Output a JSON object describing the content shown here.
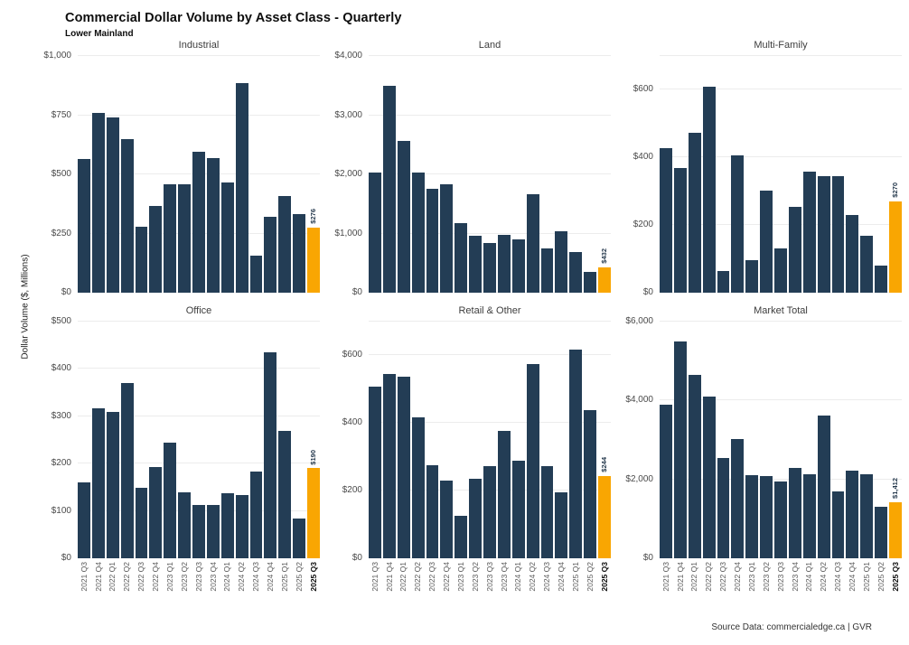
{
  "header": {
    "title": "Commercial Dollar Volume by Asset Class - Quarterly",
    "subtitle": "Lower Mainland"
  },
  "ylabel": "Dollar Volume ($, Millions)",
  "source": "Source Data: commercialedge.ca | GVR",
  "colors": {
    "bar": "#233d55",
    "highlight": "#f9a602",
    "gridline": "#ececec"
  },
  "categories": [
    "2021 Q3",
    "2021 Q4",
    "2022 Q1",
    "2022 Q2",
    "2022 Q3",
    "2022 Q4",
    "2023 Q1",
    "2023 Q2",
    "2023 Q3",
    "2023 Q4",
    "2024 Q1",
    "2024 Q2",
    "2024 Q3",
    "2024 Q4",
    "2025 Q1",
    "2025 Q2",
    "2025 Q3"
  ],
  "chart_data": [
    {
      "type": "bar",
      "title": "Industrial",
      "ylim": [
        0,
        1000
      ],
      "yticks": [
        {
          "value": 0,
          "label": "$0"
        },
        {
          "value": 250,
          "label": "$250"
        },
        {
          "value": 500,
          "label": "$500"
        },
        {
          "value": 750,
          "label": "$750"
        },
        {
          "value": 1000,
          "label": "$1,000"
        }
      ],
      "values": [
        565,
        760,
        740,
        650,
        280,
        368,
        458,
        458,
        595,
        570,
        465,
        885,
        155,
        320,
        408,
        333,
        276
      ],
      "highlight_label": "$276",
      "show_x_labels": false
    },
    {
      "type": "bar",
      "title": "Land",
      "ylim": [
        0,
        4000
      ],
      "yticks": [
        {
          "value": 0,
          "label": "$0"
        },
        {
          "value": 1000,
          "label": "$1,000"
        },
        {
          "value": 2000,
          "label": "$2,000"
        },
        {
          "value": 3000,
          "label": "$3,000"
        },
        {
          "value": 4000,
          "label": "$4,000"
        }
      ],
      "values": [
        2030,
        3500,
        2560,
        2030,
        1760,
        1830,
        1180,
        960,
        845,
        975,
        895,
        1660,
        755,
        1035,
        690,
        350,
        432
      ],
      "highlight_label": "$432",
      "show_x_labels": false
    },
    {
      "type": "bar",
      "title": "Multi-Family",
      "ylim": [
        0,
        700
      ],
      "yticks": [
        {
          "value": 0,
          "label": "$0"
        },
        {
          "value": 200,
          "label": "$200"
        },
        {
          "value": 400,
          "label": "$400"
        },
        {
          "value": 600,
          "label": "$600"
        },
        {
          "value": 700,
          "label": ""
        }
      ],
      "values": [
        428,
        368,
        472,
        608,
        63,
        405,
        95,
        302,
        131,
        254,
        358,
        345,
        345,
        231,
        168,
        80,
        270
      ],
      "highlight_label": "$270",
      "show_x_labels": false
    },
    {
      "type": "bar",
      "title": "Office",
      "ylim": [
        0,
        500
      ],
      "yticks": [
        {
          "value": 0,
          "label": "$0"
        },
        {
          "value": 100,
          "label": "$100"
        },
        {
          "value": 200,
          "label": "$200"
        },
        {
          "value": 300,
          "label": "$300"
        },
        {
          "value": 400,
          "label": "$400"
        },
        {
          "value": 500,
          "label": "$500"
        }
      ],
      "values": [
        160,
        316,
        309,
        370,
        148,
        192,
        244,
        139,
        112,
        112,
        137,
        133,
        183,
        436,
        269,
        84,
        190
      ],
      "highlight_label": "$190",
      "show_x_labels": true
    },
    {
      "type": "bar",
      "title": "Retail & Other",
      "ylim": [
        0,
        700
      ],
      "yticks": [
        {
          "value": 0,
          "label": "$0"
        },
        {
          "value": 200,
          "label": "$200"
        },
        {
          "value": 400,
          "label": "$400"
        },
        {
          "value": 600,
          "label": "$600"
        },
        {
          "value": 700,
          "label": ""
        }
      ],
      "values": [
        509,
        544,
        536,
        418,
        276,
        229,
        126,
        234,
        272,
        378,
        288,
        575,
        272,
        196,
        618,
        437,
        244
      ],
      "highlight_label": "$244",
      "show_x_labels": true
    },
    {
      "type": "bar",
      "title": "Market Total",
      "ylim": [
        0,
        6000
      ],
      "yticks": [
        {
          "value": 0,
          "label": "$0"
        },
        {
          "value": 2000,
          "label": "$2,000"
        },
        {
          "value": 4000,
          "label": "$4,000"
        },
        {
          "value": 6000,
          "label": "$6,000"
        }
      ],
      "values": [
        3890,
        5500,
        4650,
        4100,
        2540,
        3020,
        2100,
        2095,
        1950,
        2280,
        2135,
        3610,
        1685,
        2230,
        2135,
        1300,
        1412
      ],
      "highlight_label": "$1,412",
      "show_x_labels": true
    }
  ]
}
